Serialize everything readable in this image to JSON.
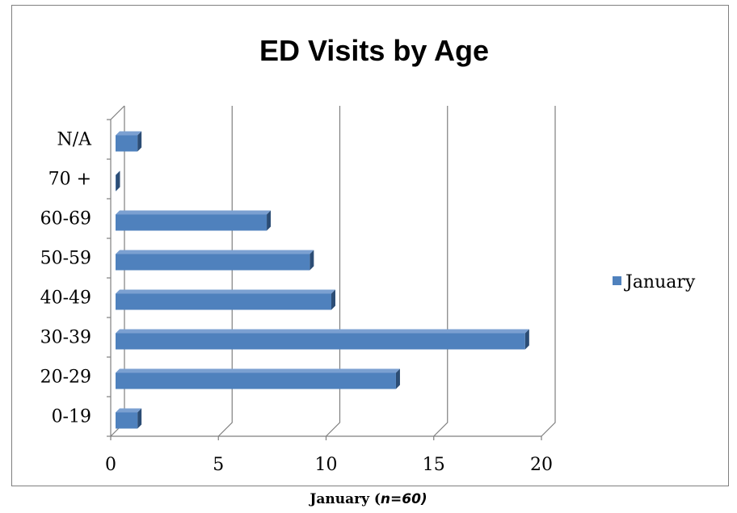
{
  "caption": {
    "prefix": "January (",
    "n_text": "n=60)"
  },
  "colors": {
    "bar_front": "#4f81bd",
    "bar_top": "#7ba0d1",
    "bar_side": "#2c4d75",
    "grid": "#7f7f7f"
  },
  "chart_data": {
    "type": "bar",
    "orientation": "horizontal",
    "title": "ED Visits by Age",
    "categories": [
      "0-19",
      "20-29",
      "30-39",
      "40-49",
      "50-59",
      "60-69",
      "70 +",
      "N/A"
    ],
    "series": [
      {
        "name": "January",
        "values": [
          1,
          13,
          19,
          10,
          9,
          7,
          0,
          1
        ]
      }
    ],
    "xlim": [
      0,
      20
    ],
    "x_ticks": [
      "0",
      "5",
      "10",
      "15",
      "20"
    ],
    "xlabel": "",
    "ylabel": "",
    "grid": true,
    "legend": "right",
    "style": "3d"
  }
}
